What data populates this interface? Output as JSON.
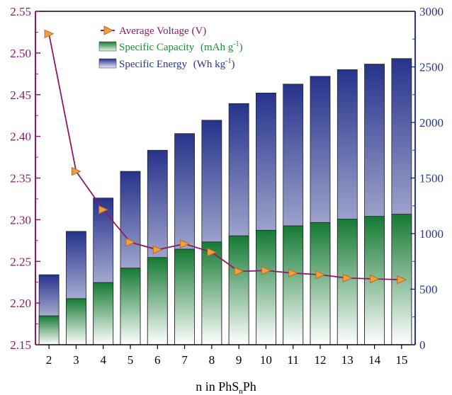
{
  "chart_data": {
    "type": "bar",
    "title": "",
    "xlabel": {
      "main": "n in PhS",
      "sub": "n",
      "tail": "Ph"
    },
    "categories": [
      "2",
      "3",
      "4",
      "5",
      "6",
      "7",
      "8",
      "9",
      "10",
      "11",
      "12",
      "13",
      "14",
      "15"
    ],
    "y_left": {
      "ylim": [
        2.15,
        2.55
      ],
      "ticks": [
        "2.15",
        "2.20",
        "2.25",
        "2.30",
        "2.35",
        "2.40",
        "2.45",
        "2.50",
        "2.55"
      ],
      "color": "#8b1a6b"
    },
    "y_right": {
      "ylim": [
        0,
        3000
      ],
      "ticks": [
        "0",
        "500",
        "1000",
        "1500",
        "2000",
        "2500",
        "3000"
      ],
      "color": "#2a3590"
    },
    "legend_position": "top-left",
    "series": [
      {
        "name": "Average Voltage (V)",
        "kind": "line",
        "axis": "left",
        "color": "#8b1a6b",
        "marker_color": "#f0a040",
        "values": [
          2.523,
          2.358,
          2.312,
          2.273,
          2.264,
          2.271,
          2.261,
          2.238,
          2.239,
          2.236,
          2.234,
          2.23,
          2.229,
          2.228
        ]
      },
      {
        "name": "Specific Capacity",
        "unit_main": "(mAh g",
        "unit_sup": "-1",
        "unit_tail": ")",
        "kind": "bar",
        "axis": "right",
        "color": "#1e8a3a",
        "values": [
          260,
          415,
          560,
          690,
          785,
          860,
          925,
          980,
          1030,
          1070,
          1100,
          1130,
          1155,
          1175
        ]
      },
      {
        "name": "Specific Energy",
        "unit_main": "(Wh kg",
        "unit_sup": "-1",
        "unit_tail": ")",
        "kind": "bar",
        "axis": "right",
        "color": "#2a3590",
        "values": [
          630,
          1020,
          1320,
          1560,
          1750,
          1900,
          2020,
          2170,
          2265,
          2345,
          2415,
          2475,
          2525,
          2575
        ]
      }
    ]
  }
}
